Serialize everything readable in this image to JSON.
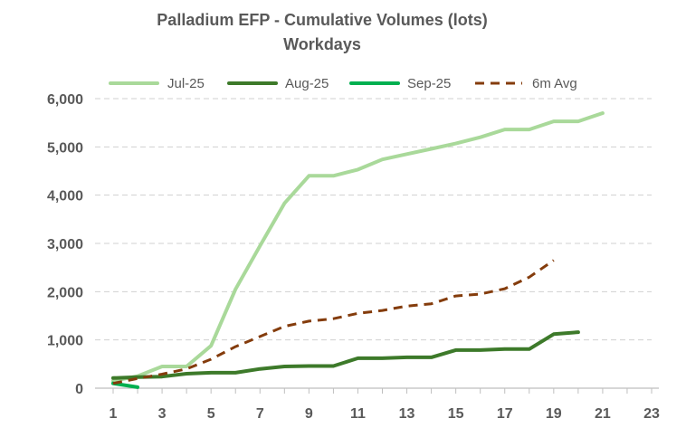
{
  "chart_data": {
    "type": "line",
    "title": "Palladium EFP - Cumulative Volumes (lots)",
    "subtitle": "Workdays",
    "xlabel": "",
    "ylabel": "",
    "xlim": [
      1,
      23
    ],
    "ylim": [
      0,
      6000
    ],
    "x_ticks": [
      1,
      3,
      5,
      7,
      9,
      11,
      13,
      15,
      17,
      19,
      21,
      23
    ],
    "y_ticks": [
      0,
      1000,
      2000,
      3000,
      4000,
      5000,
      6000
    ],
    "y_tick_labels": [
      "0",
      "1,000",
      "2,000",
      "3,000",
      "4,000",
      "5,000",
      "6,000"
    ],
    "grid": "horizontal-dashed",
    "legend_position": "top",
    "series": [
      {
        "name": "Jul-25",
        "color": "#a9d99a",
        "dash": "solid",
        "x": [
          1,
          2,
          3,
          4,
          5,
          6,
          7,
          8,
          9,
          10,
          11,
          12,
          13,
          14,
          15,
          16,
          17,
          18,
          19,
          20,
          21
        ],
        "values": [
          150,
          250,
          450,
          450,
          880,
          2050,
          2950,
          3830,
          4400,
          4400,
          4530,
          4740,
          4850,
          4960,
          5070,
          5200,
          5360,
          5360,
          5530,
          5530,
          5700
        ]
      },
      {
        "name": "Aug-25",
        "color": "#3d7a2a",
        "dash": "solid",
        "x": [
          1,
          2,
          3,
          4,
          5,
          6,
          7,
          8,
          9,
          10,
          11,
          12,
          13,
          14,
          15,
          16,
          17,
          18,
          19,
          20
        ],
        "values": [
          210,
          230,
          240,
          300,
          320,
          320,
          400,
          450,
          460,
          460,
          620,
          620,
          640,
          640,
          790,
          790,
          810,
          810,
          1120,
          1160
        ]
      },
      {
        "name": "Sep-25",
        "color": "#00b050",
        "dash": "solid",
        "x": [
          1,
          2
        ],
        "values": [
          100,
          20
        ]
      },
      {
        "name": "6m Avg",
        "color": "#843c0c",
        "dash": "dashed",
        "x": [
          1,
          2,
          3,
          4,
          5,
          6,
          7,
          8,
          9,
          10,
          11,
          12,
          13,
          14,
          15,
          16,
          17,
          18,
          19
        ],
        "values": [
          100,
          200,
          290,
          400,
          600,
          860,
          1070,
          1280,
          1390,
          1440,
          1550,
          1610,
          1700,
          1750,
          1910,
          1950,
          2060,
          2300,
          2650
        ]
      }
    ]
  }
}
